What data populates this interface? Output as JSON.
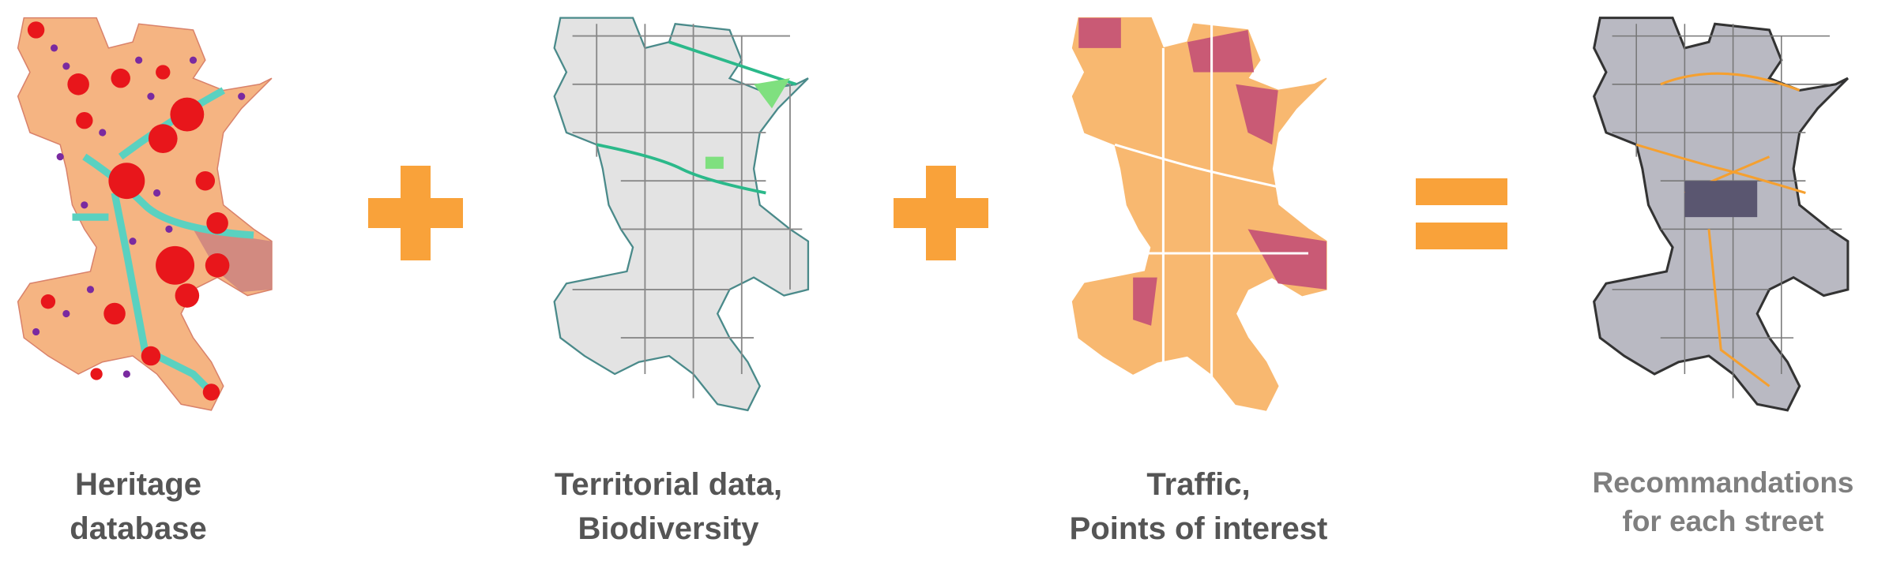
{
  "steps": [
    {
      "lines": [
        "Heritage",
        "database"
      ]
    },
    {
      "lines": [
        "Territorial data,",
        "Biodiversity"
      ]
    },
    {
      "lines": [
        "Traffic,",
        "Points of interest"
      ]
    },
    {
      "lines": [
        "Recommandations",
        "for each street"
      ]
    }
  ]
}
